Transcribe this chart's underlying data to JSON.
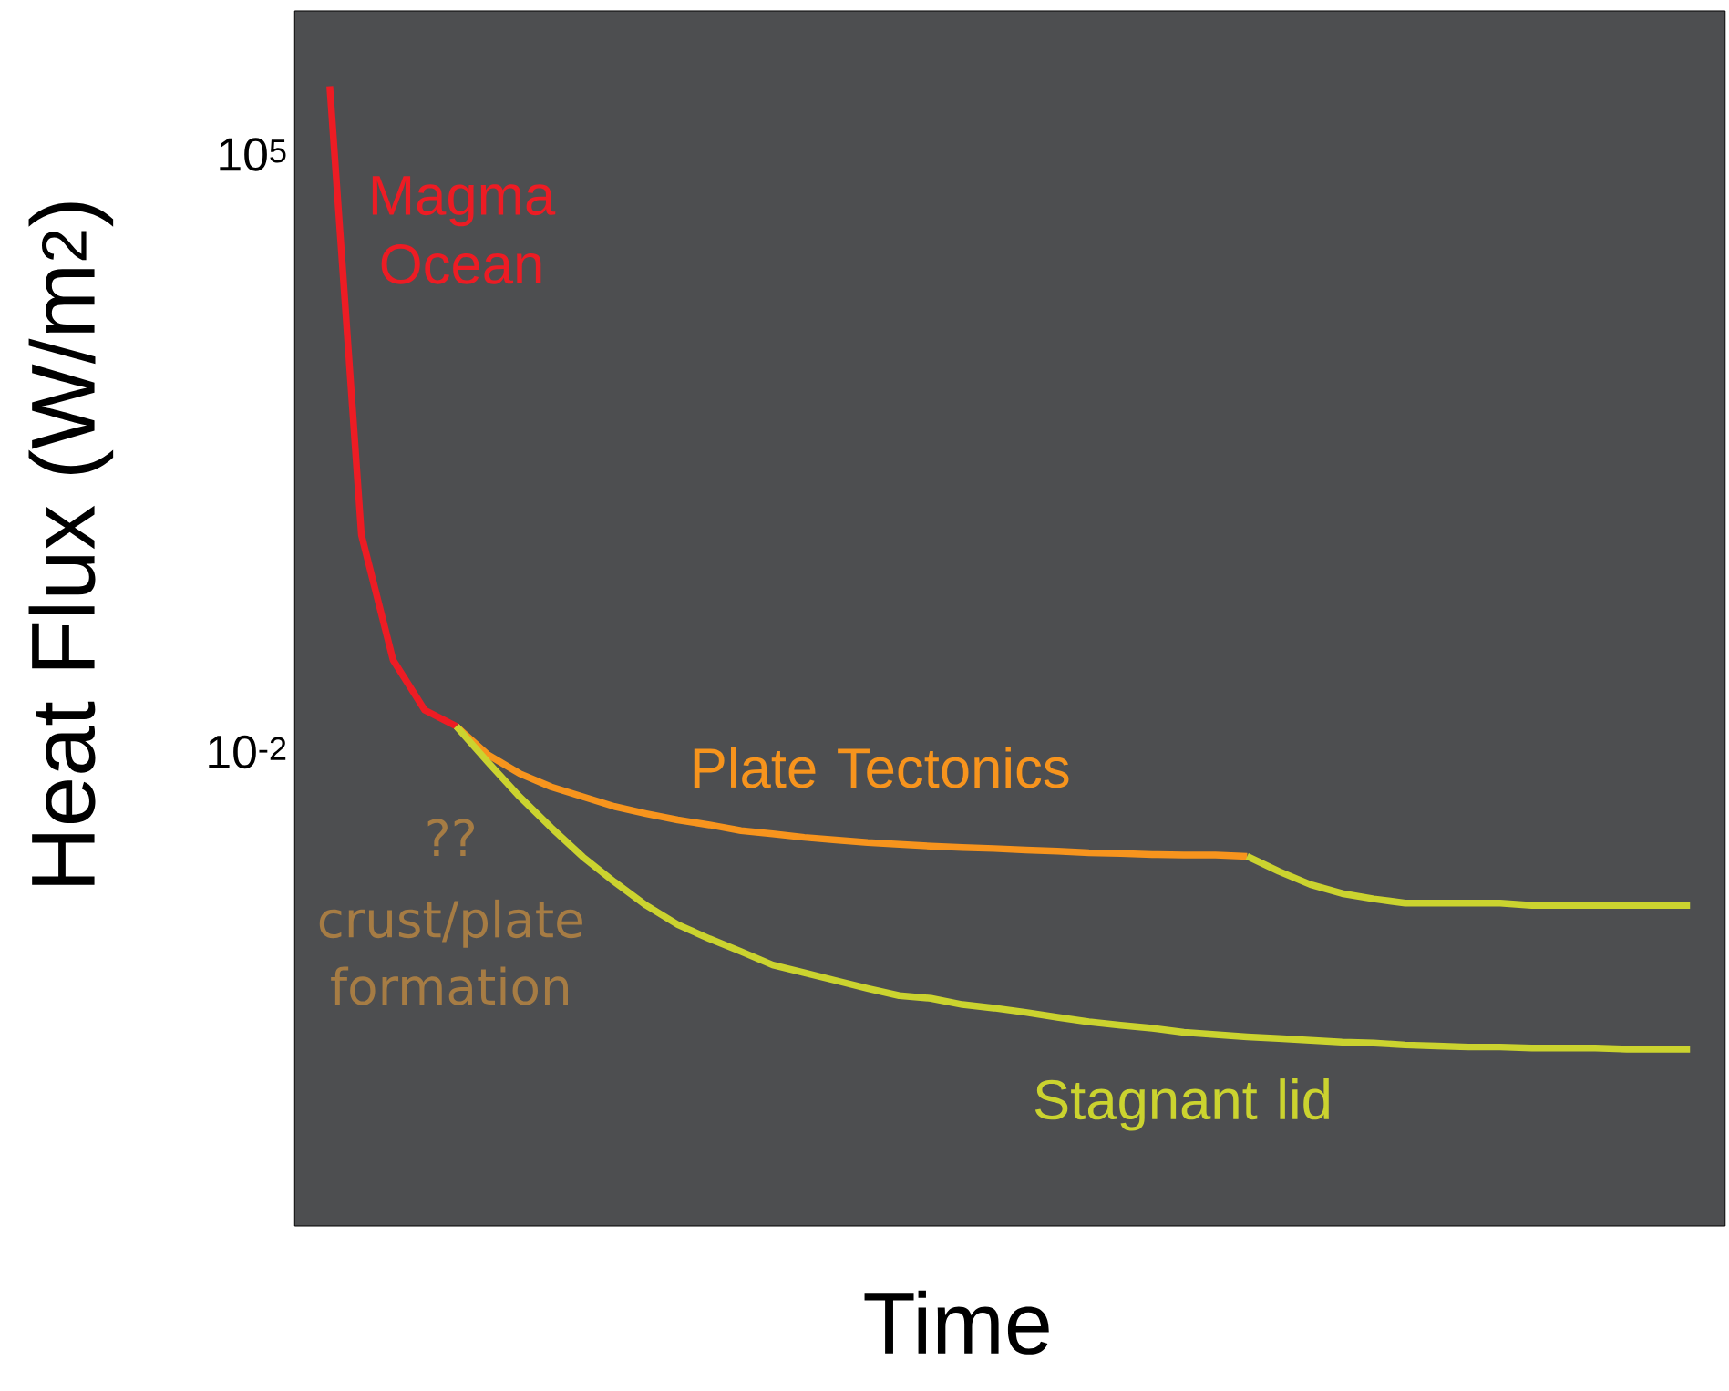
{
  "chart_data": {
    "type": "line",
    "xlabel": "Time",
    "ylabel": "Heat Flux (W/m$^{2}$)",
    "log": "y",
    "grid": false,
    "tick_labels": "y",
    "categories": [
      null,
      null,
      null,
      null,
      null,
      null,
      null,
      null,
      null,
      null,
      null,
      null,
      null,
      null,
      null,
      null,
      null,
      null,
      null,
      null,
      null,
      null,
      null,
      null,
      null,
      null,
      null,
      null,
      null,
      null,
      null,
      null,
      null,
      null,
      null,
      null,
      null,
      null,
      null,
      null,
      null,
      null,
      null,
      null
    ],
    "ylim": [
      2.8e-08,
      4800000.0
    ],
    "yticks": [
      {
        "value": 100000,
        "label": "10$^{5}$"
      },
      {
        "value": 0.01,
        "label": "10$^{-2}$"
      }
    ],
    "series": [
      {
        "name": "Magma Ocean",
        "color": "#ed1c24",
        "values": [
          630000,
          3.5,
          0.12,
          0.031,
          0.02,
          null,
          null,
          null,
          null,
          null,
          null,
          null,
          null,
          null,
          null,
          null,
          null,
          null,
          null,
          null,
          null,
          null,
          null,
          null,
          null,
          null,
          null,
          null,
          null,
          null,
          null,
          null,
          null,
          null,
          null,
          null,
          null,
          null,
          null,
          null,
          null,
          null,
          null,
          null
        ]
      },
      {
        "name": "Plate Tectonics",
        "color": "#f7941d",
        "values": [
          null,
          null,
          null,
          null,
          0.02,
          0.0093,
          0.0056,
          0.0039,
          0.003,
          0.0023,
          0.0019,
          0.0016,
          0.0014,
          0.0012,
          0.0011,
          0.001,
          0.00093,
          0.00087,
          0.00083,
          0.00079,
          0.00076,
          0.00074,
          0.00071,
          0.00069,
          0.00066,
          0.00065,
          0.00063,
          0.00062,
          0.00062,
          0.0006,
          null,
          null,
          null,
          null,
          null,
          null,
          null,
          null,
          null,
          null,
          null,
          null,
          null,
          null
        ]
      },
      {
        "name": "Stagnant lid",
        "color": "#cbd32f",
        "values": [
          null,
          null,
          null,
          null,
          0.02,
          0.0076,
          0.003,
          0.0013,
          0.00059,
          0.0003,
          0.00016,
          9.5e-05,
          6.5e-05,
          4.6e-05,
          3.2e-05,
          2.6e-05,
          2.1e-05,
          1.7e-05,
          1.4e-05,
          1.3e-05,
          1.1e-05,
          1e-05,
          8.9e-06,
          7.8e-06,
          6.9e-06,
          6.3e-06,
          5.8e-06,
          5.2e-06,
          4.9e-06,
          4.6e-06,
          4.4e-06,
          4.2e-06,
          4e-06,
          3.9e-06,
          3.7e-06,
          3.6e-06,
          3.5e-06,
          3.5e-06,
          3.4e-06,
          3.4e-06,
          3.4e-06,
          3.3e-06,
          3.3e-06,
          3.3e-06
        ]
      },
      {
        "color": "#cbd32f",
        "values": [
          null,
          null,
          null,
          null,
          null,
          null,
          null,
          null,
          null,
          null,
          null,
          null,
          null,
          null,
          null,
          null,
          null,
          null,
          null,
          null,
          null,
          null,
          null,
          null,
          null,
          null,
          null,
          null,
          null,
          0.0006,
          0.0004,
          0.00028,
          0.00022,
          0.00019,
          0.00017,
          0.00017,
          0.00017,
          0.00017,
          0.00016,
          0.00016,
          0.00016,
          0.00016,
          0.00016,
          0.00016
        ]
      }
    ],
    "annotations": [
      "??",
      "crust/plate formation"
    ]
  }
}
